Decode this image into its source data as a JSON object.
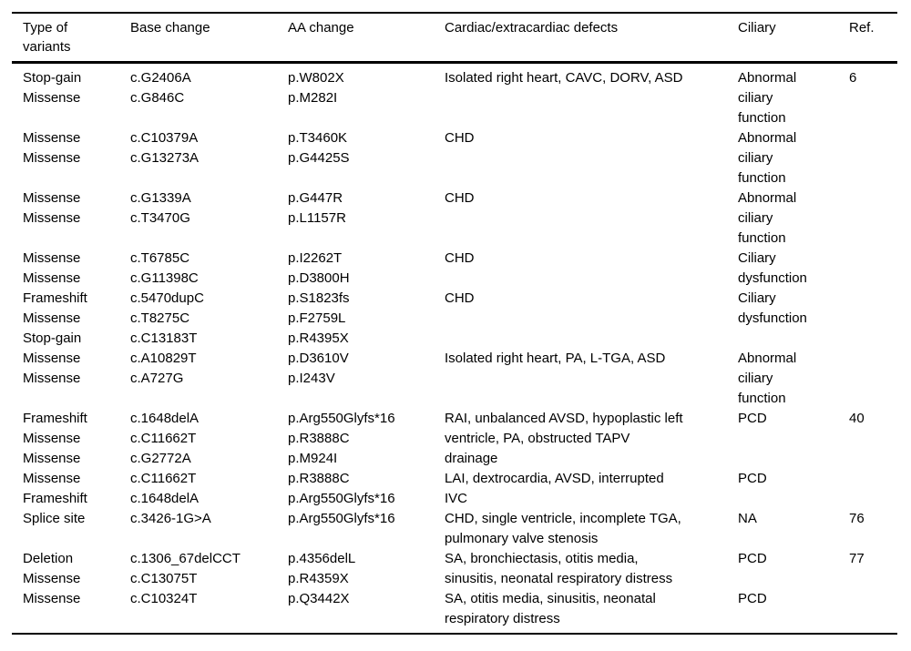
{
  "colors": {
    "background": "#ffffff",
    "text": "#000000",
    "rules": "#000000"
  },
  "table": {
    "columns": [
      {
        "key": "type",
        "label": [
          "Type of",
          "variants"
        ]
      },
      {
        "key": "base",
        "label": [
          "Base change"
        ]
      },
      {
        "key": "aa",
        "label": [
          "AA change"
        ]
      },
      {
        "key": "defects",
        "label": [
          "Cardiac/extracardiac defects"
        ]
      },
      {
        "key": "ciliary",
        "label": [
          "Ciliary"
        ]
      },
      {
        "key": "ref",
        "label": [
          "Ref."
        ]
      }
    ],
    "groups": [
      {
        "type": [
          "Stop-gain",
          "Missense"
        ],
        "base": [
          "c.G2406A",
          "c.G846C"
        ],
        "aa": [
          "p.W802X",
          "p.M282I"
        ],
        "defects": [
          "Isolated right heart, CAVC, DORV, ASD"
        ],
        "ciliary": [
          "Abnormal",
          "ciliary",
          "function"
        ],
        "ref": [
          "6"
        ]
      },
      {
        "type": [
          "Missense",
          "Missense"
        ],
        "base": [
          "c.C10379A",
          "c.G13273A"
        ],
        "aa": [
          "p.T3460K",
          "p.G4425S"
        ],
        "defects": [
          "CHD"
        ],
        "ciliary": [
          "Abnormal",
          "ciliary",
          "function"
        ],
        "ref": []
      },
      {
        "type": [
          "Missense",
          "Missense"
        ],
        "base": [
          "c.G1339A",
          "c.T3470G"
        ],
        "aa": [
          "p.G447R",
          "p.L1157R"
        ],
        "defects": [
          "CHD"
        ],
        "ciliary": [
          "Abnormal",
          "ciliary",
          "function"
        ],
        "ref": []
      },
      {
        "type": [
          "Missense",
          "Missense"
        ],
        "base": [
          "c.T6785C",
          "c.G11398C"
        ],
        "aa": [
          "p.I2262T",
          "p.D3800H"
        ],
        "defects": [
          "CHD"
        ],
        "ciliary": [
          "Ciliary",
          "dysfunction"
        ],
        "ref": []
      },
      {
        "type": [
          "Frameshift",
          "Missense",
          "Stop-gain"
        ],
        "base": [
          "c.5470dupC",
          "c.T8275C",
          "c.C13183T"
        ],
        "aa": [
          "p.S1823fs",
          "p.F2759L",
          "p.R4395X"
        ],
        "defects": [
          "CHD"
        ],
        "ciliary": [
          "Ciliary",
          "dysfunction"
        ],
        "ref": []
      },
      {
        "type": [
          "Missense",
          "Missense"
        ],
        "base": [
          "c.A10829T",
          "c.A727G"
        ],
        "aa": [
          "p.D3610V",
          "p.I243V"
        ],
        "defects": [
          "Isolated right heart, PA, L-TGA, ASD"
        ],
        "ciliary": [
          "Abnormal",
          "ciliary",
          "function"
        ],
        "ref": []
      },
      {
        "type": [
          "Frameshift",
          "Missense",
          "Missense"
        ],
        "base": [
          "c.1648delA",
          "c.C11662T",
          "c.G2772A"
        ],
        "aa": [
          "p.Arg550Glyfs*16",
          "p.R3888C",
          "p.M924I"
        ],
        "defects": [
          "RAI, unbalanced AVSD, hypoplastic left",
          "ventricle, PA, obstructed TAPV",
          "drainage"
        ],
        "ciliary": [
          "PCD"
        ],
        "ref": [
          "40"
        ]
      },
      {
        "type": [
          "Missense",
          "Frameshift"
        ],
        "base": [
          "c.C11662T",
          "c.1648delA"
        ],
        "aa": [
          "p.R3888C",
          "p.Arg550Glyfs*16"
        ],
        "defects": [
          "LAI, dextrocardia, AVSD, interrupted",
          "IVC"
        ],
        "ciliary": [
          "PCD"
        ],
        "ref": []
      },
      {
        "type": [
          "Splice site"
        ],
        "base": [
          "c.3426-1G>A"
        ],
        "aa": [
          "p.Arg550Glyfs*16"
        ],
        "defects": [
          "CHD, single ventricle, incomplete TGA,",
          "pulmonary valve stenosis"
        ],
        "ciliary": [
          "NA"
        ],
        "ref": [
          "76"
        ]
      },
      {
        "type": [
          "Deletion",
          "Missense"
        ],
        "base": [
          "c.1306_67delCCT",
          "c.C13075T"
        ],
        "aa": [
          "p.4356delL",
          "p.R4359X"
        ],
        "defects": [
          "SA, bronchiectasis, otitis media,",
          "sinusitis, neonatal respiratory distress"
        ],
        "ciliary": [
          "PCD"
        ],
        "ref": [
          "77"
        ]
      },
      {
        "type": [
          "Missense"
        ],
        "base": [
          "c.C10324T"
        ],
        "aa": [
          "p.Q3442X"
        ],
        "defects": [
          "SA, otitis media, sinusitis, neonatal",
          "respiratory distress"
        ],
        "ciliary": [
          "PCD"
        ],
        "ref": []
      }
    ]
  }
}
